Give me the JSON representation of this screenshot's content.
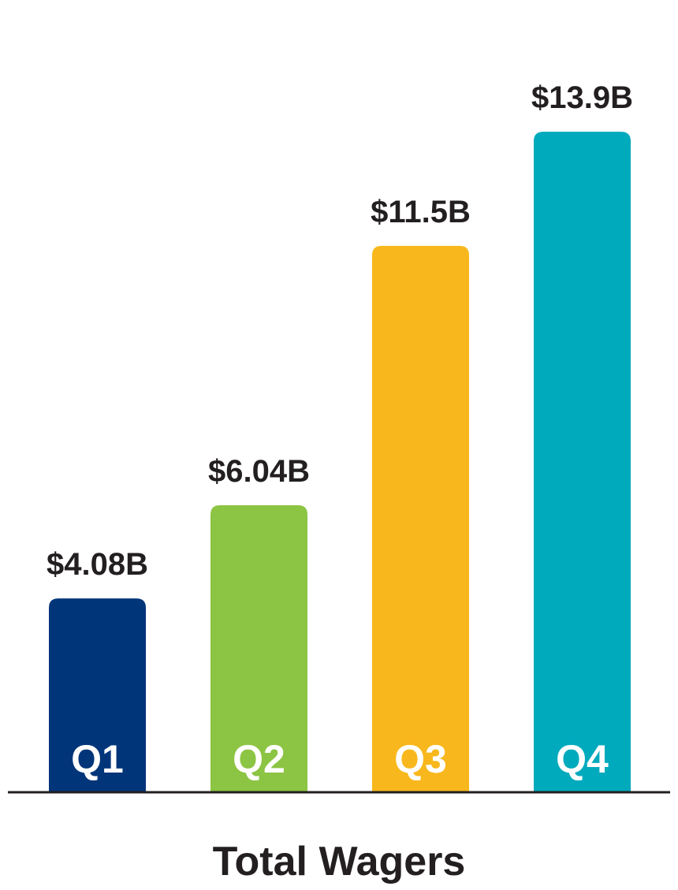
{
  "chart_data": {
    "type": "bar",
    "title": "Total Wagers",
    "categories": [
      "Q1",
      "Q2",
      "Q3",
      "Q4"
    ],
    "values": [
      4.08,
      6.04,
      11.5,
      13.9
    ],
    "value_labels": [
      "$4.08B",
      "$6.04B",
      "$11.5B",
      "$13.9B"
    ],
    "colors": [
      "#00357a",
      "#8cc443",
      "#f8b71c",
      "#00aabd"
    ],
    "xlabel": "",
    "ylabel": "",
    "ylim": [
      0,
      15.18
    ],
    "grid": false,
    "legend": "none"
  }
}
